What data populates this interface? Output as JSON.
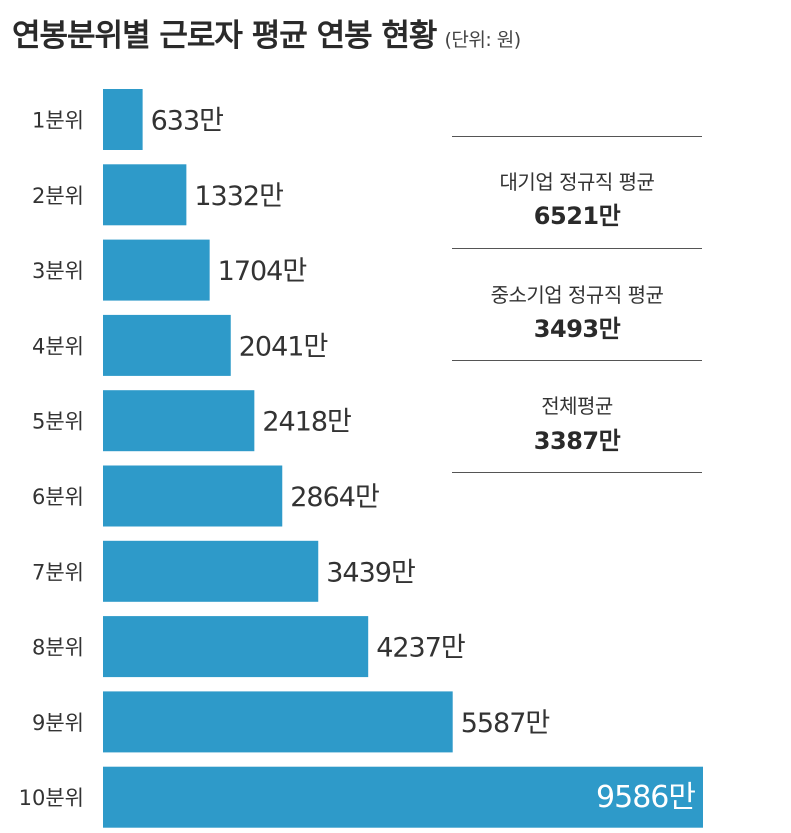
{
  "title": "연봉분위별 근로자 평균 연봉 현황",
  "unit_note": "(단위: 원)",
  "bar_color": "#2e9ac9",
  "summary": [
    {
      "label": "대기업 정규직 평균",
      "value": "6521만"
    },
    {
      "label": "중소기업 정규직 평균",
      "value": "3493만"
    },
    {
      "label": "전체평균",
      "value": "3387만"
    }
  ],
  "chart_data": {
    "type": "bar",
    "orientation": "horizontal",
    "title": "연봉분위별 근로자 평균 연봉 현황",
    "unit": "(단위: 원)",
    "categories": [
      "1분위",
      "2분위",
      "3분위",
      "4분위",
      "5분위",
      "6분위",
      "7분위",
      "8분위",
      "9분위",
      "10분위"
    ],
    "values": [
      633,
      1332,
      1704,
      2041,
      2418,
      2864,
      3439,
      4237,
      5587,
      9586
    ],
    "value_labels": [
      "633만",
      "1332만",
      "1704만",
      "2041만",
      "2418만",
      "2864만",
      "3439만",
      "4237만",
      "5587만",
      "9586만"
    ],
    "xlim": [
      0,
      9586
    ],
    "grid": false,
    "legend": "none"
  }
}
